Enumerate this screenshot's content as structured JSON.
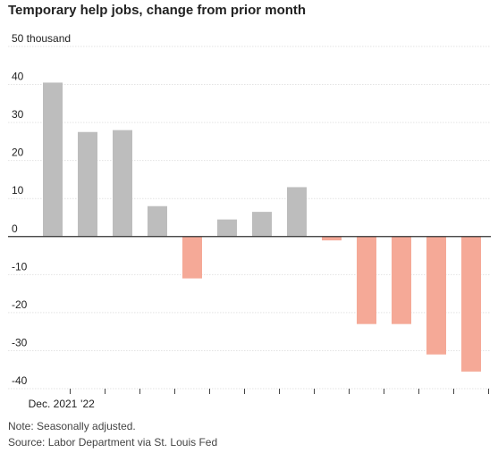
{
  "chart_data": {
    "type": "bar",
    "title": "Temporary help jobs, change from prior month",
    "y_unit_label": "50 thousand",
    "ylabel": "",
    "xlabel": "",
    "ylim": [
      -40,
      50
    ],
    "yticks": [
      50,
      40,
      30,
      20,
      10,
      0,
      -10,
      -20,
      -30,
      -40
    ],
    "ytick_labels": [
      "50 thousand",
      "40",
      "30",
      "20",
      "10",
      "0",
      "-10",
      "-20",
      "-30",
      "-40"
    ],
    "categories": [
      "Dec. 2021",
      "'22",
      "",
      "",
      "",
      "",
      "",
      "",
      "",
      "",
      "",
      "",
      ""
    ],
    "x_tick_labels": [
      "Dec. 2021",
      "'22"
    ],
    "values": [
      40.5,
      27.5,
      28,
      8,
      -11,
      4.5,
      6.5,
      13,
      -1,
      -23,
      -23,
      -31,
      -35.5
    ],
    "colors": {
      "positive": "#bdbdbd",
      "negative": "#f5a997"
    },
    "grid": true,
    "legend": "none"
  },
  "footer": {
    "note": "Note: Seasonally adjusted.",
    "source": "Source: Labor Department via St. Louis Fed"
  }
}
